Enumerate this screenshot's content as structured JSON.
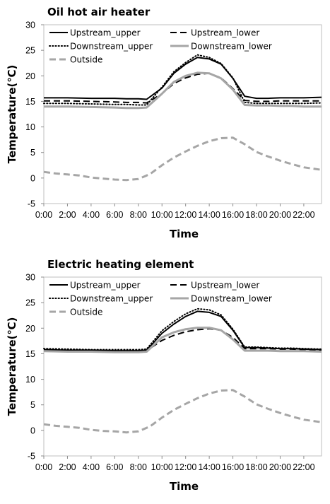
{
  "chart_data": [
    {
      "type": "line",
      "title": "Oil hot air heater",
      "xlabel": "Time",
      "ylabel": "Temperature(℃)",
      "ylim": [
        -5,
        30
      ],
      "yticks": [
        -5,
        0,
        5,
        10,
        15,
        20,
        25,
        30
      ],
      "xlim": [
        0,
        23.5
      ],
      "xticks": [
        0,
        2,
        4,
        6,
        8,
        10,
        12,
        14,
        16,
        18,
        20,
        22
      ],
      "xtick_labels": [
        "0:00",
        "2:00",
        "4:00",
        "6:00",
        "8:00",
        "10:00",
        "12:00",
        "14:00",
        "16:00",
        "18:00",
        "20:00",
        "22:00"
      ],
      "grid": false,
      "legend": "top",
      "series": [
        {
          "name": "Upstream_upper",
          "color": "#000000",
          "style": "solid",
          "x": [
            0,
            2,
            4,
            6,
            7,
            8,
            8.7,
            10,
            11,
            12,
            13,
            14,
            15,
            16,
            17,
            18,
            19,
            20,
            21,
            22,
            23.5
          ],
          "y": [
            15.7,
            15.7,
            15.6,
            15.6,
            15.5,
            15.5,
            15.4,
            17.6,
            20.5,
            22.3,
            23.6,
            23.3,
            22.3,
            19.5,
            16.0,
            15.6,
            15.6,
            15.7,
            15.7,
            15.7,
            15.8
          ]
        },
        {
          "name": "Upstream_lower",
          "color": "#000000",
          "style": "dashed",
          "x": [
            0,
            2,
            4,
            6,
            7,
            8,
            8.7,
            10,
            11,
            12,
            13,
            14,
            15,
            16,
            17,
            18,
            19,
            20,
            21,
            22,
            23.5
          ],
          "y": [
            15.1,
            15.1,
            15.0,
            14.9,
            14.8,
            14.8,
            14.7,
            16.5,
            18.5,
            19.6,
            20.3,
            20.5,
            19.6,
            17.5,
            15.2,
            15.0,
            15.0,
            15.1,
            15.1,
            15.1,
            15.1
          ]
        },
        {
          "name": "Downstream_upper",
          "color": "#000000",
          "style": "dotted",
          "x": [
            0,
            2,
            4,
            6,
            7,
            8,
            8.7,
            10,
            11,
            12,
            13,
            14,
            15,
            16,
            17,
            18,
            19,
            20,
            21,
            22,
            23.5
          ],
          "y": [
            14.6,
            14.6,
            14.5,
            14.4,
            14.4,
            14.3,
            14.3,
            17.8,
            20.8,
            22.6,
            24.1,
            23.6,
            22.4,
            19.6,
            14.8,
            14.6,
            14.6,
            14.6,
            14.6,
            14.6,
            14.7
          ]
        },
        {
          "name": "Downstream_lower",
          "color": "#a6a6a6",
          "style": "solid",
          "x": [
            0,
            2,
            4,
            6,
            7,
            8,
            8.7,
            10,
            11,
            12,
            13,
            14,
            15,
            16,
            17,
            18,
            19,
            20,
            21,
            22,
            23.5
          ],
          "y": [
            14.0,
            14.0,
            13.9,
            13.8,
            13.7,
            13.7,
            13.8,
            16.5,
            18.8,
            20.0,
            20.6,
            20.5,
            19.5,
            17.3,
            14.3,
            14.2,
            14.2,
            14.1,
            14.1,
            14.0,
            14.0
          ]
        },
        {
          "name": "Outside",
          "color": "#a6a6a6",
          "style": "dashed",
          "x": [
            0,
            1,
            2,
            3,
            4,
            5,
            6,
            7,
            8,
            9,
            10,
            11,
            12,
            13,
            14,
            15,
            16,
            17,
            18,
            19,
            20,
            21,
            22,
            23.5
          ],
          "y": [
            1.2,
            0.9,
            0.7,
            0.5,
            0.1,
            -0.1,
            -0.3,
            -0.4,
            -0.2,
            0.8,
            2.5,
            4.0,
            5.2,
            6.3,
            7.2,
            7.8,
            7.9,
            6.6,
            5.1,
            4.2,
            3.4,
            2.7,
            2.1,
            1.6
          ]
        }
      ]
    },
    {
      "type": "line",
      "title": "Electric heating element",
      "xlabel": "Time",
      "ylabel": "Temperature(℃)",
      "ylim": [
        -5,
        30
      ],
      "yticks": [
        -5,
        0,
        5,
        10,
        15,
        20,
        25,
        30
      ],
      "xlim": [
        0,
        23.5
      ],
      "xticks": [
        0,
        2,
        4,
        6,
        8,
        10,
        12,
        14,
        16,
        18,
        20,
        22
      ],
      "xtick_labels": [
        "0:00",
        "2:00",
        "4:00",
        "6:00",
        "8:00",
        "10:00",
        "12:00",
        "14:00",
        "16:00",
        "18:00",
        "20:00",
        "22:00"
      ],
      "grid": false,
      "legend": "top",
      "series": [
        {
          "name": "Upstream_upper",
          "color": "#000000",
          "style": "solid",
          "x": [
            0,
            2,
            4,
            6,
            7,
            8,
            8.7,
            10,
            11,
            12,
            13,
            14,
            15,
            16,
            17,
            18,
            19,
            20,
            21,
            22,
            23.5
          ],
          "y": [
            15.8,
            15.7,
            15.7,
            15.6,
            15.6,
            15.6,
            15.7,
            19.0,
            20.8,
            22.3,
            23.3,
            23.1,
            22.3,
            19.6,
            16.2,
            16.2,
            16.1,
            16.0,
            16.0,
            15.9,
            15.8
          ]
        },
        {
          "name": "Upstream_lower",
          "color": "#000000",
          "style": "dashed",
          "x": [
            0,
            2,
            4,
            6,
            7,
            8,
            8.7,
            10,
            11,
            12,
            13,
            14,
            15,
            16,
            17,
            18,
            19,
            20,
            21,
            22,
            23.5
          ],
          "y": [
            15.7,
            15.6,
            15.6,
            15.5,
            15.5,
            15.5,
            15.6,
            17.6,
            18.6,
            19.3,
            19.7,
            19.9,
            19.6,
            18.2,
            16.0,
            16.0,
            16.0,
            15.9,
            15.9,
            15.8,
            15.7
          ]
        },
        {
          "name": "Downstream_upper",
          "color": "#000000",
          "style": "dotted",
          "x": [
            0,
            2,
            4,
            6,
            7,
            8,
            8.7,
            10,
            11,
            12,
            13,
            14,
            15,
            16,
            17,
            18,
            19,
            20,
            21,
            22,
            23.5
          ],
          "y": [
            16.0,
            15.9,
            15.8,
            15.8,
            15.8,
            15.8,
            15.9,
            19.5,
            21.3,
            22.8,
            23.8,
            23.6,
            22.6,
            19.8,
            16.3,
            16.3,
            16.2,
            16.1,
            16.1,
            16.0,
            15.9
          ]
        },
        {
          "name": "Downstream_lower",
          "color": "#a6a6a6",
          "style": "solid",
          "x": [
            0,
            2,
            4,
            6,
            7,
            8,
            8.7,
            10,
            11,
            12,
            13,
            14,
            15,
            16,
            17,
            18,
            19,
            20,
            21,
            22,
            23.5
          ],
          "y": [
            15.5,
            15.4,
            15.4,
            15.3,
            15.3,
            15.3,
            15.4,
            18.2,
            19.2,
            19.8,
            20.1,
            20.1,
            19.6,
            17.8,
            15.6,
            15.6,
            15.6,
            15.5,
            15.5,
            15.5,
            15.4
          ]
        },
        {
          "name": "Outside",
          "color": "#a6a6a6",
          "style": "dashed",
          "x": [
            0,
            1,
            2,
            3,
            4,
            5,
            6,
            7,
            8,
            9,
            10,
            11,
            12,
            13,
            14,
            15,
            16,
            17,
            18,
            19,
            20,
            21,
            22,
            23.5
          ],
          "y": [
            1.2,
            0.9,
            0.7,
            0.5,
            0.1,
            -0.1,
            -0.2,
            -0.4,
            -0.2,
            0.8,
            2.5,
            4.0,
            5.2,
            6.3,
            7.2,
            7.8,
            7.9,
            6.6,
            5.1,
            4.2,
            3.4,
            2.7,
            2.1,
            1.6
          ]
        }
      ]
    }
  ]
}
